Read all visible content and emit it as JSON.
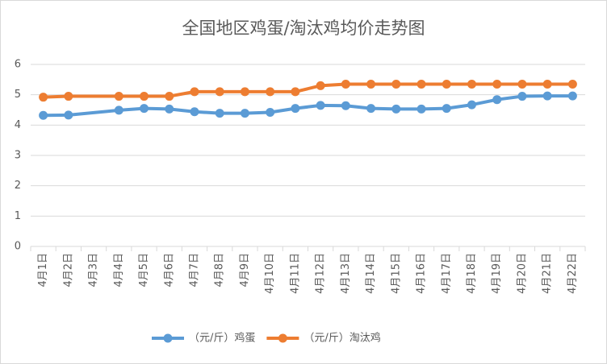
{
  "chart_data": {
    "type": "line",
    "title": "全国地区鸡蛋/淘汰鸡均价走势图",
    "categories": [
      "4月1日",
      "4月2日",
      "4月3日",
      "4月4日",
      "4月5日",
      "4月6日",
      "4月7日",
      "4月8日",
      "4月9日",
      "4月10日",
      "4月11日",
      "4月12日",
      "4月13日",
      "4月14日",
      "4月15日",
      "4月16日",
      "4月17日",
      "4月18日",
      "4月19日",
      "4月20日",
      "4月21日",
      "4月22日"
    ],
    "series": [
      {
        "name": "（元/斤）鸡蛋",
        "color": "#5b9bd5",
        "values": [
          4.32,
          4.33,
          null,
          4.49,
          4.55,
          4.53,
          4.44,
          4.39,
          4.39,
          4.42,
          4.55,
          4.65,
          4.64,
          4.55,
          4.53,
          4.53,
          4.55,
          4.67,
          4.84,
          4.95,
          4.96,
          4.96
        ]
      },
      {
        "name": "（元/斤）淘汰鸡",
        "color": "#ed7d31",
        "values": [
          4.92,
          4.95,
          null,
          4.95,
          4.95,
          4.95,
          5.1,
          5.1,
          5.1,
          5.1,
          5.1,
          5.3,
          5.35,
          5.35,
          5.35,
          5.35,
          5.35,
          5.35,
          5.35,
          5.35,
          5.35,
          5.35
        ]
      }
    ],
    "ylim": [
      0,
      6
    ],
    "yticks": [
      0,
      1,
      2,
      3,
      4,
      5,
      6
    ],
    "grid": true,
    "connect_gaps": true,
    "legend": "bottom"
  }
}
